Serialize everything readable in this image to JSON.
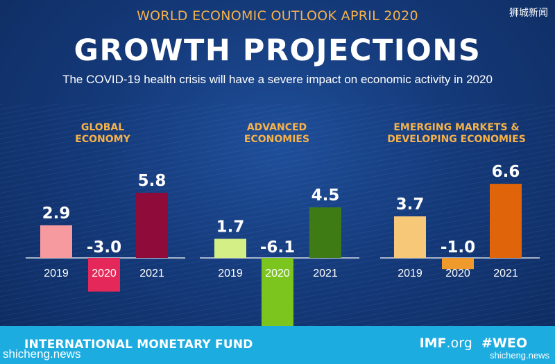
{
  "header": {
    "top_line": "WORLD ECONOMIC OUTLOOK  APRIL 2020",
    "title": "GROWTH PROJECTIONS",
    "subtitle": "The COVID-19 health crisis will have a severe impact on economic activity in 2020"
  },
  "corner_watermark": "狮城新闻",
  "footer": {
    "org_name": "INTERNATIONAL MONETARY FUND",
    "site_bold": "IMF",
    "site_light": ".org",
    "hashtag": "#WEO",
    "watermark_left": "shicheng.news",
    "watermark_right": "shicheng.news"
  },
  "colors": {
    "title_orange": "#f6b24a",
    "footer_blue": "#1dace0",
    "background": "#153a7a"
  },
  "chart_data": [
    {
      "type": "bar",
      "title": "GLOBAL ECONOMY",
      "categories": [
        "2019",
        "2020",
        "2021"
      ],
      "values": [
        2.9,
        -3.0,
        5.8
      ],
      "value_labels": [
        "2.9",
        "-3.0",
        "5.8"
      ],
      "colors": [
        "#f79aa0",
        "#e5285a",
        "#8e0b3a"
      ]
    },
    {
      "type": "bar",
      "title": "ADVANCED ECONOMIES",
      "categories": [
        "2019",
        "2020",
        "2021"
      ],
      "values": [
        1.7,
        -6.1,
        4.5
      ],
      "value_labels": [
        "1.7",
        "-6.1",
        "4.5"
      ],
      "colors": [
        "#d4ef85",
        "#7cc51f",
        "#3f7b14"
      ]
    },
    {
      "type": "bar",
      "title": "EMERGING MARKETS & DEVELOPING ECONOMIES",
      "categories": [
        "2019",
        "2020",
        "2021"
      ],
      "values": [
        3.7,
        -1.0,
        6.6
      ],
      "value_labels": [
        "3.7",
        "-1.0",
        "6.6"
      ],
      "colors": [
        "#f6c877",
        "#ef9a2a",
        "#e0640a"
      ]
    }
  ]
}
